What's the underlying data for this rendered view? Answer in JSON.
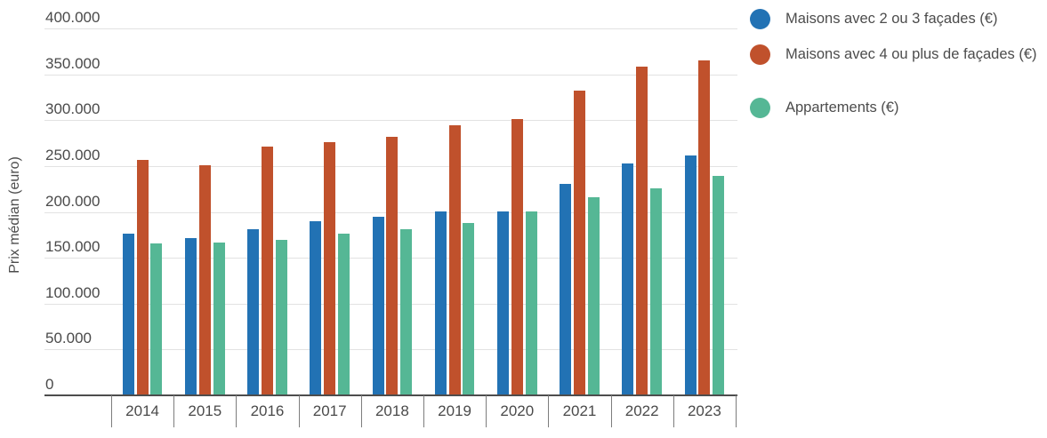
{
  "chart_data": {
    "type": "bar",
    "title": "",
    "xlabel": "",
    "ylabel": "Prix médian (euro)",
    "categories": [
      "2014",
      "2015",
      "2016",
      "2017",
      "2018",
      "2019",
      "2020",
      "2021",
      "2022",
      "2023"
    ],
    "series": [
      {
        "name": "Maisons avec 2 ou 3 façades (€)",
        "color": "#2272b4",
        "values": [
          176000,
          171000,
          181000,
          190000,
          195000,
          201000,
          201000,
          231000,
          253000,
          262000
        ]
      },
      {
        "name": "Maisons avec 4 ou plus de façades (€)",
        "color": "#c0512c",
        "values": [
          257000,
          251000,
          271000,
          276000,
          282000,
          294000,
          301000,
          332000,
          358000,
          365000
        ]
      },
      {
        "name": "Appartements (€)",
        "color": "#55b795",
        "values": [
          166000,
          167000,
          170000,
          176000,
          181000,
          188000,
          201000,
          216000,
          226000,
          239000
        ]
      }
    ],
    "y_axis": {
      "min": 0,
      "max": 400000,
      "tick_step": 50000,
      "tick_labels": [
        "0",
        "50.000",
        "100.000",
        "150.000",
        "200.000",
        "250.000",
        "300.000",
        "350.000",
        "400.000"
      ]
    },
    "grid": true,
    "legend_position": "right"
  }
}
